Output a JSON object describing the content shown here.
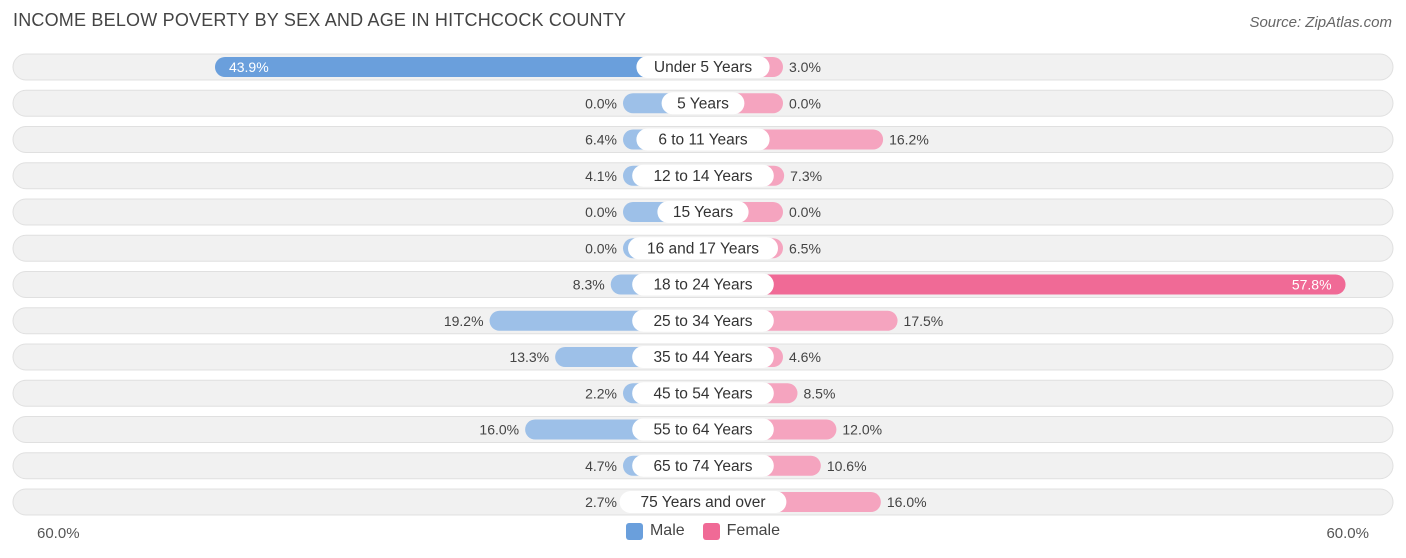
{
  "title": "INCOME BELOW POVERTY BY SEX AND AGE IN HITCHCOCK COUNTY",
  "source": "Source: ZipAtlas.com",
  "axis": {
    "left_label": "60.0%",
    "right_label": "60.0%"
  },
  "legend": {
    "male": "Male",
    "female": "Female"
  },
  "colors": {
    "male": "#9dc0e8",
    "male_strong": "#6a9fdc",
    "female": "#f5a4bf",
    "female_strong": "#f06a96",
    "row_bg": "#f1f1f1",
    "row_border": "#e0e0e0"
  },
  "chart_data": {
    "type": "bar",
    "orientation": "horizontal-diverging",
    "title": "INCOME BELOW POVERTY BY SEX AND AGE IN HITCHCOCK COUNTY",
    "xlim": [
      -60,
      60
    ],
    "categories": [
      "Under 5 Years",
      "5 Years",
      "6 to 11 Years",
      "12 to 14 Years",
      "15 Years",
      "16 and 17 Years",
      "18 to 24 Years",
      "25 to 34 Years",
      "35 to 44 Years",
      "45 to 54 Years",
      "55 to 64 Years",
      "65 to 74 Years",
      "75 Years and over"
    ],
    "series": [
      {
        "name": "Male",
        "values": [
          43.9,
          0.0,
          6.4,
          4.1,
          0.0,
          0.0,
          8.3,
          19.2,
          13.3,
          2.2,
          16.0,
          4.7,
          2.7
        ],
        "labels": [
          "43.9%",
          "0.0%",
          "6.4%",
          "4.1%",
          "0.0%",
          "0.0%",
          "8.3%",
          "19.2%",
          "13.3%",
          "2.2%",
          "16.0%",
          "4.7%",
          "2.7%"
        ]
      },
      {
        "name": "Female",
        "values": [
          3.0,
          0.0,
          16.2,
          7.3,
          0.0,
          6.5,
          57.8,
          17.5,
          4.6,
          8.5,
          12.0,
          10.6,
          16.0
        ],
        "labels": [
          "3.0%",
          "0.0%",
          "16.2%",
          "7.3%",
          "0.0%",
          "6.5%",
          "57.8%",
          "17.5%",
          "4.6%",
          "8.5%",
          "12.0%",
          "10.6%",
          "16.0%"
        ]
      }
    ],
    "legend_position": "bottom-center"
  }
}
